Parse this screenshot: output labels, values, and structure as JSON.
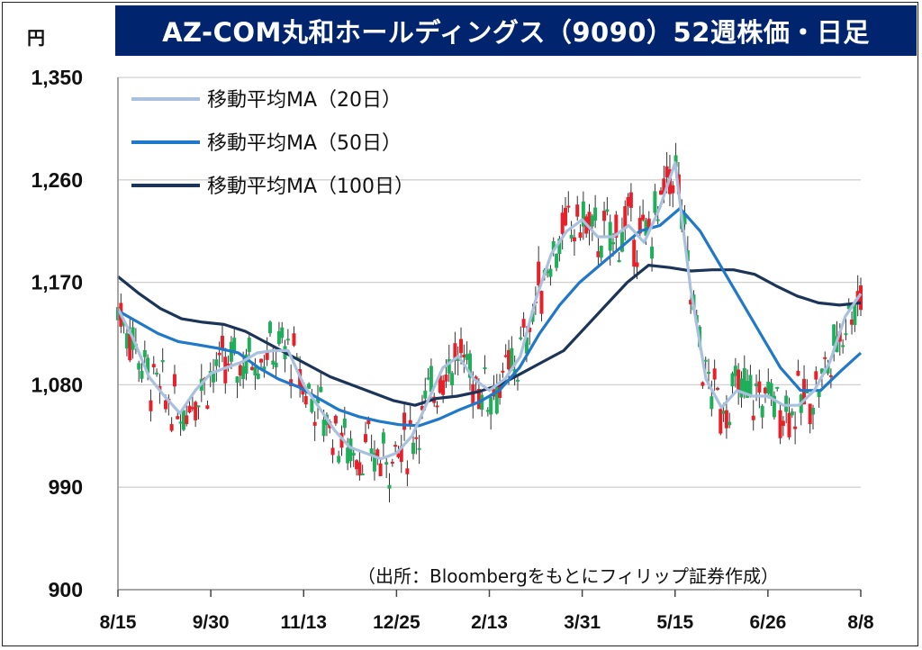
{
  "title": "AZ-COM丸和ホールディングス（9090）52週株価・日足",
  "unit": "円",
  "source": "（出所：Bloombergをもとにフィリップ証券作成）",
  "colors": {
    "title_bg": "#00256e",
    "up_candle": "#e8202a",
    "down_candle": "#1fae5a",
    "ma20": "#a9c1df",
    "ma50": "#1f78c8",
    "ma100": "#1c3457",
    "grid": "#d0d0d0"
  },
  "chart_data": {
    "type": "candlestick",
    "ylim": [
      900,
      1350
    ],
    "yticks": [
      900,
      990,
      1080,
      1170,
      1260,
      1350
    ],
    "ytick_labels": [
      "900",
      "990",
      "1,080",
      "1,170",
      "1,260",
      "1,350"
    ],
    "xtick_labels": [
      "8/15",
      "9/30",
      "11/13",
      "12/25",
      "2/13",
      "3/31",
      "5/15",
      "6/26",
      "8/8"
    ],
    "legend": [
      {
        "key": "ma20",
        "label": "移動平均MA（20日）"
      },
      {
        "key": "ma50",
        "label": "移動平均MA（50日）"
      },
      {
        "key": "ma100",
        "label": "移動平均MA（100日）"
      }
    ],
    "ma20": [
      1147,
      1120,
      1087,
      1070,
      1055,
      1075,
      1090,
      1095,
      1100,
      1108,
      1110,
      1110,
      1080,
      1060,
      1040,
      1025,
      1020,
      1015,
      1020,
      1035,
      1065,
      1095,
      1105,
      1085,
      1075,
      1085,
      1105,
      1155,
      1195,
      1215,
      1225,
      1210,
      1210,
      1220,
      1205,
      1235,
      1275,
      1165,
      1085,
      1060,
      1075,
      1070,
      1070,
      1062,
      1062,
      1075,
      1100,
      1140,
      1160
    ],
    "ma50": [
      1145,
      1135,
      1125,
      1118,
      1115,
      1112,
      1108,
      1095,
      1085,
      1078,
      1068,
      1058,
      1052,
      1048,
      1045,
      1044,
      1050,
      1058,
      1065,
      1075,
      1095,
      1125,
      1150,
      1170,
      1185,
      1200,
      1215,
      1220,
      1235,
      1215,
      1185,
      1155,
      1125,
      1095,
      1075,
      1075,
      1092,
      1108
    ],
    "ma100": [
      1175,
      1160,
      1147,
      1138,
      1135,
      1133,
      1127,
      1117,
      1107,
      1097,
      1087,
      1080,
      1073,
      1066,
      1062,
      1068,
      1070,
      1074,
      1080,
      1090,
      1100,
      1110,
      1130,
      1150,
      1170,
      1185,
      1183,
      1180,
      1181,
      1181,
      1177,
      1167,
      1158,
      1152,
      1150,
      1152
    ]
  }
}
